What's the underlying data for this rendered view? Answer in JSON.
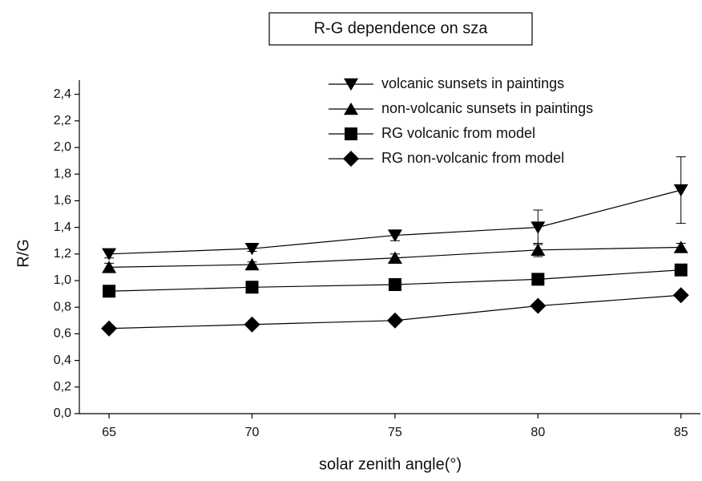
{
  "chart_data": {
    "type": "line",
    "title": "R-G dependence on sza",
    "xlabel": "solar zenith angle(°)",
    "ylabel": "R/G",
    "x": [
      65,
      70,
      75,
      80,
      85
    ],
    "series": [
      {
        "name": "volcanic sunsets in paintings",
        "color": "#000000",
        "marker": "triangle-down",
        "values": [
          1.2,
          1.24,
          1.34,
          1.4,
          1.68
        ],
        "errors": [
          0.03,
          0.02,
          0.04,
          0.13,
          0.25
        ]
      },
      {
        "name": "non-volcanic sunsets in paintings",
        "color": "#000000",
        "marker": "triangle-up",
        "values": [
          1.1,
          1.12,
          1.17,
          1.23,
          1.25
        ],
        "errors": [
          0.03,
          0.02,
          0.03,
          0.05,
          0.03
        ]
      },
      {
        "name": "RG volcanic from model",
        "color": "#000000",
        "marker": "square",
        "values": [
          0.92,
          0.95,
          0.97,
          1.01,
          1.08
        ]
      },
      {
        "name": "RG non-volcanic from model",
        "color": "#000000",
        "marker": "diamond",
        "values": [
          0.64,
          0.67,
          0.7,
          0.81,
          0.89
        ]
      }
    ],
    "xlim": [
      63.96,
      85.68
    ],
    "xticks": [
      65,
      70,
      75,
      80,
      85
    ],
    "ylim": [
      0,
      2.5
    ],
    "yticks": [
      {
        "value": 0,
        "label": "0,0"
      },
      {
        "value": 0.2,
        "label": "0,2"
      },
      {
        "value": 0.4,
        "label": "0,4"
      },
      {
        "value": 0.6,
        "label": "0,6"
      },
      {
        "value": 0.8,
        "label": "0,8"
      },
      {
        "value": 1.0,
        "label": "1,0"
      },
      {
        "value": 1.2,
        "label": "1,2"
      },
      {
        "value": 1.4,
        "label": "1,4"
      },
      {
        "value": 1.6,
        "label": "1,6"
      },
      {
        "value": 1.8,
        "label": "1,8"
      },
      {
        "value": 2.0,
        "label": "2,0"
      },
      {
        "value": 2.2,
        "label": "2,2"
      },
      {
        "value": 2.4,
        "label": "2,4"
      }
    ],
    "grid": false,
    "legend": "top-right"
  }
}
